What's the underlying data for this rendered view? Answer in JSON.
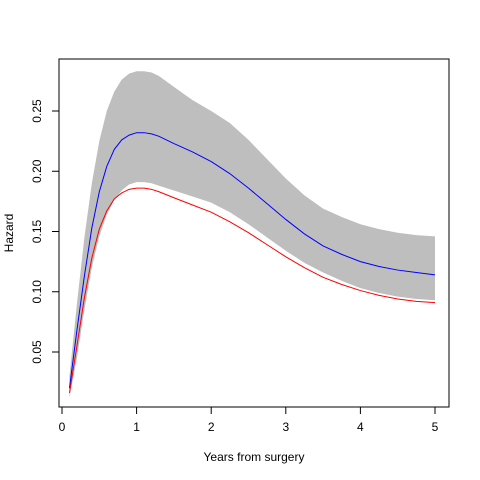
{
  "chart_data": {
    "type": "line",
    "title": "",
    "xlabel": "Years from surgery",
    "ylabel": "Hazard",
    "xlim": [
      0,
      5.15
    ],
    "ylim": [
      0.0,
      0.29
    ],
    "x_ticks": [
      0,
      1,
      2,
      3,
      4,
      5
    ],
    "y_ticks": [
      0.05,
      0.1,
      0.15,
      0.2,
      0.25
    ],
    "y_tick_labels": [
      "0.05",
      "0.10",
      "0.15",
      "0.20",
      "0.25"
    ],
    "grid": false,
    "legend": "none",
    "band": {
      "color": "#bebebe",
      "x": [
        0.1,
        0.2,
        0.3,
        0.4,
        0.5,
        0.6,
        0.7,
        0.8,
        0.9,
        1.0,
        1.1,
        1.2,
        1.3,
        1.5,
        1.75,
        2.0,
        2.25,
        2.5,
        2.75,
        3.0,
        3.25,
        3.5,
        3.75,
        4.0,
        4.25,
        4.5,
        4.75,
        5.0
      ],
      "upper": [
        0.03,
        0.09,
        0.145,
        0.19,
        0.225,
        0.25,
        0.266,
        0.276,
        0.281,
        0.283,
        0.283,
        0.282,
        0.279,
        0.27,
        0.259,
        0.25,
        0.24,
        0.226,
        0.21,
        0.194,
        0.18,
        0.169,
        0.162,
        0.156,
        0.152,
        0.149,
        0.147,
        0.146
      ],
      "lower": [
        0.012,
        0.045,
        0.085,
        0.12,
        0.146,
        0.164,
        0.176,
        0.184,
        0.189,
        0.191,
        0.191,
        0.19,
        0.188,
        0.184,
        0.179,
        0.174,
        0.166,
        0.156,
        0.145,
        0.134,
        0.124,
        0.116,
        0.109,
        0.103,
        0.099,
        0.096,
        0.094,
        0.093
      ]
    },
    "series": [
      {
        "color": "#0000ff",
        "x": [
          0.1,
          0.2,
          0.3,
          0.4,
          0.5,
          0.6,
          0.7,
          0.8,
          0.9,
          1.0,
          1.1,
          1.2,
          1.3,
          1.5,
          1.75,
          2.0,
          2.25,
          2.5,
          2.75,
          3.0,
          3.25,
          3.5,
          3.75,
          4.0,
          4.25,
          4.5,
          4.75,
          5.0
        ],
        "values": [
          0.02,
          0.068,
          0.113,
          0.153,
          0.183,
          0.204,
          0.218,
          0.226,
          0.23,
          0.232,
          0.232,
          0.231,
          0.229,
          0.223,
          0.216,
          0.208,
          0.198,
          0.186,
          0.173,
          0.16,
          0.148,
          0.138,
          0.131,
          0.125,
          0.121,
          0.118,
          0.116,
          0.114
        ]
      },
      {
        "color": "#ff0000",
        "x": [
          0.1,
          0.2,
          0.3,
          0.4,
          0.5,
          0.6,
          0.7,
          0.8,
          0.9,
          1.0,
          1.1,
          1.2,
          1.3,
          1.5,
          1.75,
          2.0,
          2.25,
          2.5,
          2.75,
          3.0,
          3.25,
          3.5,
          3.75,
          4.0,
          4.25,
          4.5,
          4.75,
          5.0
        ],
        "values": [
          0.016,
          0.055,
          0.095,
          0.128,
          0.152,
          0.167,
          0.177,
          0.182,
          0.185,
          0.186,
          0.186,
          0.185,
          0.183,
          0.178,
          0.172,
          0.166,
          0.158,
          0.149,
          0.139,
          0.129,
          0.12,
          0.112,
          0.106,
          0.101,
          0.097,
          0.094,
          0.092,
          0.091
        ]
      }
    ]
  }
}
